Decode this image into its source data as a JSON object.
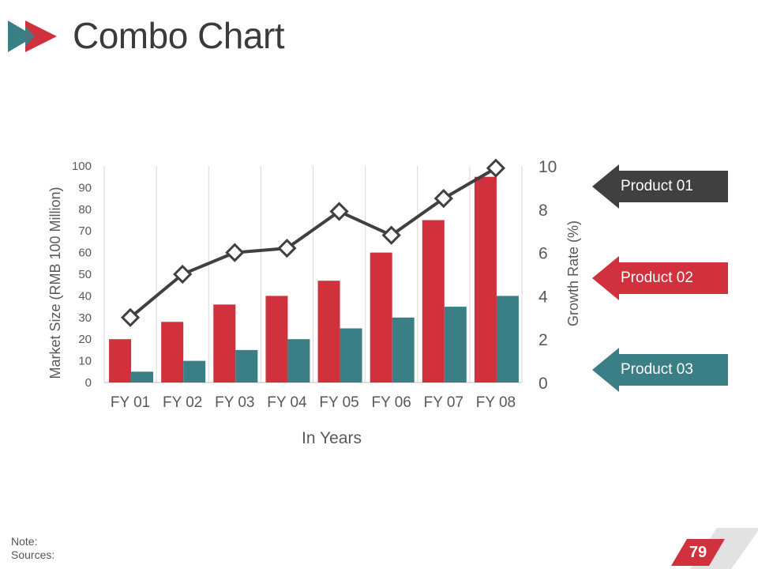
{
  "slide": {
    "title": "Combo Chart",
    "note_label": "Note:",
    "sources_label": "Sources:",
    "page_number": "79"
  },
  "colors": {
    "product01": "#404040",
    "product02": "#d0313d",
    "product03": "#3a7f86",
    "line": "#404040",
    "axis_text": "#595959",
    "grid": "#d9d9d9"
  },
  "legend": [
    {
      "label": "Product 01",
      "color": "#404040"
    },
    {
      "label": "Product 02",
      "color": "#d0313d"
    },
    {
      "label": "Product 03",
      "color": "#3a7f86"
    }
  ],
  "chart_data": {
    "type": "combo",
    "categories": [
      "FY 01",
      "FY 02",
      "FY 03",
      "FY 04",
      "FY 05",
      "FY 06",
      "FY 07",
      "FY 08"
    ],
    "series": [
      {
        "name": "Product 02",
        "type": "bar",
        "axis": "left",
        "values": [
          20,
          28,
          36,
          40,
          47,
          60,
          75,
          95
        ]
      },
      {
        "name": "Product 03",
        "type": "bar",
        "axis": "left",
        "values": [
          5,
          10,
          15,
          20,
          25,
          30,
          35,
          40
        ]
      },
      {
        "name": "Product 01",
        "type": "line",
        "axis": "right",
        "marker": "diamond",
        "values": [
          3.0,
          5.0,
          6.0,
          6.2,
          7.9,
          6.8,
          8.5,
          9.9
        ]
      }
    ],
    "xlabel": "In Years",
    "ylabel": "Market Size (RMB 100 Million)",
    "y2label": "Growth Rate (%)",
    "ylim": [
      0,
      100
    ],
    "yticks": [
      "0",
      "10",
      "20",
      "30",
      "40",
      "50",
      "60",
      "70",
      "80",
      "90",
      "100"
    ],
    "y2lim": [
      0,
      10
    ],
    "y2ticks": [
      "0",
      "2",
      "4",
      "6",
      "8",
      "10"
    ],
    "grid": "vertical"
  }
}
